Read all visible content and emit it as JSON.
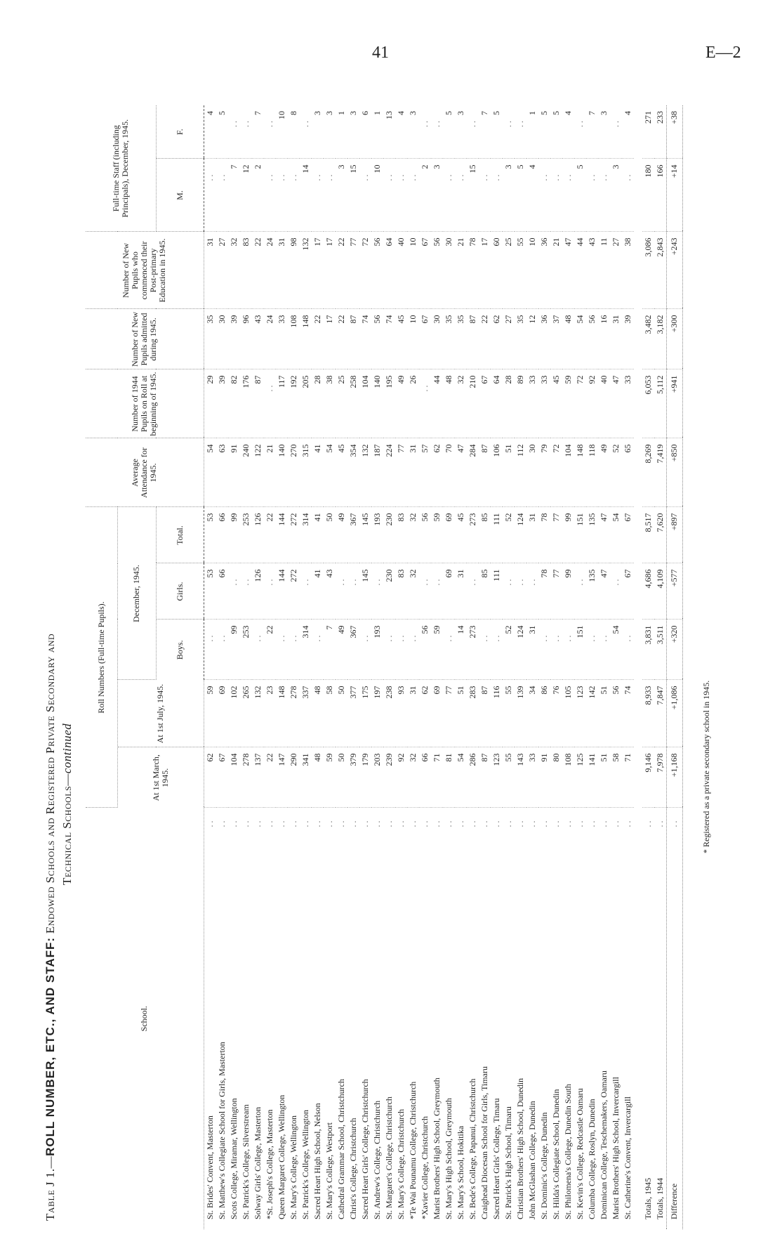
{
  "page": {
    "number": "41",
    "code": "E—2"
  },
  "title": {
    "prefix": "Table J 1.—",
    "main": "ROLL NUMBER, ETC., AND STAFF:",
    "rest": " Endowed Schools and Registered Private Secondary and",
    "line2": "Technical Schools—",
    "continued": "continued"
  },
  "headers": {
    "school": "School.",
    "roll_numbers": "Roll Numbers (Full-time Pupils).",
    "march": "At 1st March, 1945.",
    "july": "At 1st July, 1945.",
    "december": "December, 1945.",
    "boys": "Boys.",
    "girls": "Girls.",
    "total": "Total.",
    "avg": "Average Attendance for 1945.",
    "on_roll": "Number of 1944 Pupils on Roll at beginning of 1945.",
    "admitted": "Number of New Pupils admitted during 1945.",
    "commenced": "Number of New Pupils who commenced their Post-primary Education in 1945.",
    "staff": "Full-time Staff (including Principals), December, 1945.",
    "m": "M.",
    "f": "F."
  },
  "rows": [
    {
      "school": "St. Brides' Convent, Masterton",
      "march": "62",
      "july": "59",
      "boys": null,
      "girls": "53",
      "total": "53",
      "avg": "54",
      "on_roll": "29",
      "admitted": "35",
      "commenced": "31",
      "m": null,
      "f": "4"
    },
    {
      "school": "St. Matthew's Collegiate School for Girls, Masterton",
      "march": "67",
      "july": "69",
      "boys": null,
      "girls": "66",
      "total": "66",
      "avg": "63",
      "on_roll": "39",
      "admitted": "30",
      "commenced": "27",
      "m": null,
      "f": "5"
    },
    {
      "school": "Scots College, Miramar, Wellington",
      "march": "104",
      "july": "102",
      "boys": "99",
      "girls": null,
      "total": "99",
      "avg": "91",
      "on_roll": "82",
      "admitted": "39",
      "commenced": "32",
      "m": "7",
      "f": null
    },
    {
      "school": "St. Patrick's College, Silverstream",
      "march": "278",
      "july": "265",
      "boys": "253",
      "girls": null,
      "total": "253",
      "avg": "240",
      "on_roll": "176",
      "admitted": "96",
      "commenced": "83",
      "m": "12",
      "f": null
    },
    {
      "school": "Solway Girls' College, Masterton",
      "march": "137",
      "july": "132",
      "boys": null,
      "girls": "126",
      "total": "126",
      "avg": "122",
      "on_roll": "87",
      "admitted": "43",
      "commenced": "22",
      "m": "2",
      "f": "7"
    },
    {
      "school": "*St. Joseph's College, Masterton",
      "march": "22",
      "july": "23",
      "boys": "22",
      "girls": null,
      "total": "22",
      "avg": "21",
      "on_roll": null,
      "admitted": "24",
      "commenced": "24",
      "m": null,
      "f": null
    },
    {
      "school": "Queen Margaret College, Wellington",
      "march": "147",
      "july": "148",
      "boys": null,
      "girls": "144",
      "total": "144",
      "avg": "140",
      "on_roll": "117",
      "admitted": "33",
      "commenced": "31",
      "m": null,
      "f": "10"
    },
    {
      "school": "St. Mary's College, Wellington",
      "march": "290",
      "july": "278",
      "boys": null,
      "girls": "272",
      "total": "272",
      "avg": "270",
      "on_roll": "192",
      "admitted": "108",
      "commenced": "98",
      "m": null,
      "f": "8"
    },
    {
      "school": "St. Patrick's College, Wellington",
      "march": "341",
      "july": "337",
      "boys": "314",
      "girls": null,
      "total": "314",
      "avg": "315",
      "on_roll": "205",
      "admitted": "148",
      "commenced": "132",
      "m": "14",
      "f": null
    },
    {
      "school": "Sacred Heart High School, Nelson",
      "march": "48",
      "july": "48",
      "boys": null,
      "girls": "41",
      "total": "41",
      "avg": "41",
      "on_roll": "28",
      "admitted": "22",
      "commenced": "17",
      "m": null,
      "f": "3"
    },
    {
      "school": "St. Mary's College, Westport",
      "march": "59",
      "july": "58",
      "boys": "7",
      "girls": "43",
      "total": "50",
      "avg": "54",
      "on_roll": "38",
      "admitted": "17",
      "commenced": "17",
      "m": null,
      "f": "3"
    },
    {
      "school": "Cathedral Grammar School, Christchurch",
      "march": "50",
      "july": "50",
      "boys": "49",
      "girls": null,
      "total": "49",
      "avg": "45",
      "on_roll": "25",
      "admitted": "22",
      "commenced": "22",
      "m": "3",
      "f": "1"
    },
    {
      "school": "Christ's College, Christchurch",
      "march": "379",
      "july": "377",
      "boys": "367",
      "girls": null,
      "total": "367",
      "avg": "354",
      "on_roll": "258",
      "admitted": "87",
      "commenced": "77",
      "m": "15",
      "f": "3"
    },
    {
      "school": "Sacred Heart Girls' College, Christchurch",
      "march": "179",
      "july": "175",
      "boys": null,
      "girls": "145",
      "total": "145",
      "avg": "132",
      "on_roll": "104",
      "admitted": "74",
      "commenced": "72",
      "m": null,
      "f": "6"
    },
    {
      "school": "St. Andrew's College, Christchurch",
      "march": "203",
      "july": "197",
      "boys": "193",
      "girls": null,
      "total": "193",
      "avg": "187",
      "on_roll": "140",
      "admitted": "56",
      "commenced": "56",
      "m": "10",
      "f": "1"
    },
    {
      "school": "St. Margaret's College, Christchurch",
      "march": "239",
      "july": "238",
      "boys": null,
      "girls": "230",
      "total": "230",
      "avg": "224",
      "on_roll": "195",
      "admitted": "74",
      "commenced": "64",
      "m": null,
      "f": "13"
    },
    {
      "school": "St. Mary's College, Christchurch",
      "march": "92",
      "july": "93",
      "boys": null,
      "girls": "83",
      "total": "83",
      "avg": "77",
      "on_roll": "49",
      "admitted": "45",
      "commenced": "40",
      "m": null,
      "f": "4"
    },
    {
      "school": "*Te Wai Pounamu College, Christchurch",
      "march": "32",
      "july": "31",
      "boys": null,
      "girls": "32",
      "total": "32",
      "avg": "31",
      "on_roll": "26",
      "admitted": "10",
      "commenced": "10",
      "m": null,
      "f": "3"
    },
    {
      "school": "*Xavier College, Christchurch",
      "march": "66",
      "july": "62",
      "boys": "56",
      "girls": null,
      "total": "56",
      "avg": "57",
      "on_roll": null,
      "admitted": "67",
      "commenced": "67",
      "m": "2",
      "f": null
    },
    {
      "school": "Marist Brothers' High School, Greymouth",
      "march": "71",
      "july": "69",
      "boys": "59",
      "girls": null,
      "total": "59",
      "avg": "62",
      "on_roll": "44",
      "admitted": "30",
      "commenced": "56",
      "m": "3",
      "f": null
    },
    {
      "school": "St. Mary's High School, Greymouth",
      "march": "81",
      "july": "77",
      "boys": null,
      "girls": "69",
      "total": "69",
      "avg": "70",
      "on_roll": "48",
      "admitted": "35",
      "commenced": "30",
      "m": null,
      "f": "5"
    },
    {
      "school": "St. Mary's School, Hokitika",
      "march": "54",
      "july": "51",
      "boys": "14",
      "girls": "31",
      "total": "45",
      "avg": "47",
      "on_roll": "32",
      "admitted": "35",
      "commenced": "21",
      "m": null,
      "f": "3"
    },
    {
      "school": "St. Bede's College, Papanui, Christchurch",
      "march": "286",
      "july": "283",
      "boys": "273",
      "girls": null,
      "total": "273",
      "avg": "284",
      "on_roll": "210",
      "admitted": "87",
      "commenced": "78",
      "m": "15",
      "f": null
    },
    {
      "school": "Craighead Diocesan School for Girls, Timaru",
      "march": "87",
      "july": "87",
      "boys": null,
      "girls": "85",
      "total": "85",
      "avg": "87",
      "on_roll": "67",
      "admitted": "22",
      "commenced": "17",
      "m": null,
      "f": "7"
    },
    {
      "school": "Sacred Heart Girls' College, Timaru",
      "march": "123",
      "july": "116",
      "boys": null,
      "girls": "111",
      "total": "111",
      "avg": "106",
      "on_roll": "64",
      "admitted": "62",
      "commenced": "60",
      "m": null,
      "f": "5"
    },
    {
      "school": "St. Patrick's High School, Timaru",
      "march": "55",
      "july": "55",
      "boys": "52",
      "girls": null,
      "total": "52",
      "avg": "51",
      "on_roll": "28",
      "admitted": "27",
      "commenced": "25",
      "m": "3",
      "f": null
    },
    {
      "school": "Christian Brothers' High School, Dunedin",
      "march": "143",
      "july": "139",
      "boys": "124",
      "girls": null,
      "total": "124",
      "avg": "112",
      "on_roll": "89",
      "admitted": "35",
      "commenced": "55",
      "m": "5",
      "f": null
    },
    {
      "school": "John McGlashan College, Dunedin",
      "march": "33",
      "july": "34",
      "boys": "31",
      "girls": null,
      "total": "31",
      "avg": "30",
      "on_roll": "33",
      "admitted": "12",
      "commenced": "10",
      "m": "4",
      "f": "1"
    },
    {
      "school": "St. Dominic's College, Dunedin",
      "march": "91",
      "july": "86",
      "boys": null,
      "girls": "78",
      "total": "78",
      "avg": "79",
      "on_roll": "33",
      "admitted": "36",
      "commenced": "36",
      "m": null,
      "f": "5"
    },
    {
      "school": "St. Hilda's Collegiate School, Dunedin",
      "march": "80",
      "july": "76",
      "boys": null,
      "girls": "77",
      "total": "77",
      "avg": "72",
      "on_roll": "45",
      "admitted": "37",
      "commenced": "21",
      "m": null,
      "f": "5"
    },
    {
      "school": "St. Philomena's College, Dunedin South",
      "march": "108",
      "july": "105",
      "boys": null,
      "girls": "99",
      "total": "99",
      "avg": "104",
      "on_roll": "59",
      "admitted": "48",
      "commenced": "47",
      "m": null,
      "f": "4"
    },
    {
      "school": "St. Kevin's College, Redcastle Oamaru",
      "march": "125",
      "july": "123",
      "boys": "151",
      "girls": null,
      "total": "151",
      "avg": "148",
      "on_roll": "72",
      "admitted": "54",
      "commenced": "44",
      "m": "5",
      "f": null
    },
    {
      "school": "Columba College, Roslyn, Dunedin",
      "march": "141",
      "july": "142",
      "boys": null,
      "girls": "135",
      "total": "135",
      "avg": "118",
      "on_roll": "92",
      "admitted": "56",
      "commenced": "43",
      "m": null,
      "f": "7"
    },
    {
      "school": "Dominican College, Teschemakers, Oamaru",
      "march": "51",
      "july": "51",
      "boys": null,
      "girls": "47",
      "total": "47",
      "avg": "49",
      "on_roll": "40",
      "admitted": "16",
      "commenced": "11",
      "m": null,
      "f": "3"
    },
    {
      "school": "Marist Brothers' High School, Invercargill",
      "march": "58",
      "july": "56",
      "boys": "54",
      "girls": null,
      "total": "54",
      "avg": "52",
      "on_roll": "47",
      "admitted": "31",
      "commenced": "27",
      "m": "3",
      "f": null
    },
    {
      "school": "St. Catherine's Convent, Invercargill",
      "march": "71",
      "july": "74",
      "boys": null,
      "girls": "67",
      "total": "67",
      "avg": "65",
      "on_roll": "33",
      "admitted": "39",
      "commenced": "38",
      "m": null,
      "f": "4"
    }
  ],
  "totals": [
    {
      "school": "Totals, 1945",
      "march": "9,146",
      "july": "8,933",
      "boys": "3,831",
      "girls": "4,686",
      "total": "8,517",
      "avg": "8,269",
      "on_roll": "6,053",
      "admitted": "3,482",
      "commenced": "3,086",
      "m": "180",
      "f": "271"
    },
    {
      "school": "Totals, 1944",
      "march": "7,978",
      "july": "7,847",
      "boys": "3,511",
      "girls": "4,109",
      "total": "7,620",
      "avg": "7,419",
      "on_roll": "5,112",
      "admitted": "3,182",
      "commenced": "2,843",
      "m": "166",
      "f": "233"
    }
  ],
  "difference": {
    "school": "Difference",
    "march": "+1,168",
    "july": "+1,086",
    "boys": "+320",
    "girls": "+577",
    "total": "+897",
    "avg": "+850",
    "on_roll": "+941",
    "admitted": "+300",
    "commenced": "+243",
    "m": "+14",
    "f": "+38"
  },
  "footnote": "* Registered as a private secondary school in 1945."
}
